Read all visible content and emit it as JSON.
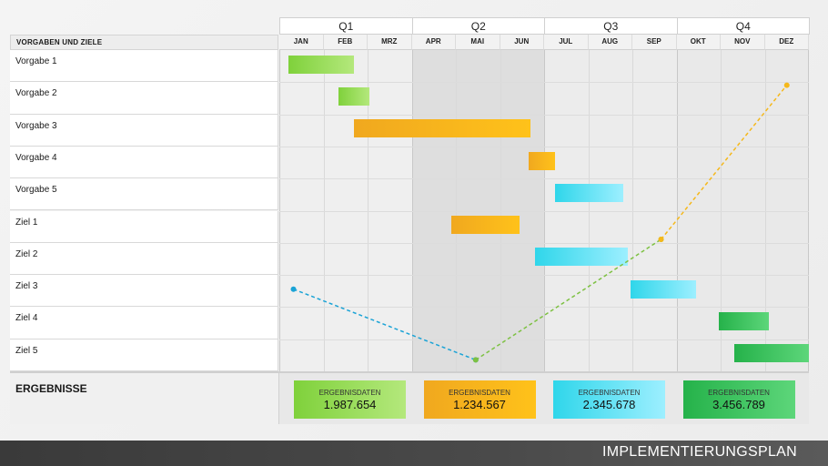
{
  "page_title": "IMPLEMENTIERUNGSPLAN",
  "left_header": "VORGABEN UND ZIELE",
  "results_label": "ERGEBNISSE",
  "colors": {
    "green_light": [
      "#7fd13b",
      "#b4e87c"
    ],
    "orange": [
      "#f0a81f",
      "#ffc21a"
    ],
    "cyan": [
      "#2fd6ea",
      "#9defff"
    ],
    "green_dark": [
      "#25b24a",
      "#5dd67a"
    ],
    "trend_blue": "#1aa3d6",
    "trend_green": "#7dc142",
    "trend_yellow": "#f5b81b"
  },
  "chart_data": {
    "type": "gantt",
    "quarters": [
      "Q1",
      "Q2",
      "Q3",
      "Q4"
    ],
    "months": [
      "JAN",
      "FEB",
      "MRZ",
      "APR",
      "MAI",
      "JUN",
      "JUL",
      "AUG",
      "SEP",
      "OKT",
      "NOV",
      "DEZ"
    ],
    "rows": [
      {
        "label": "Vorgabe 1",
        "start": 0.2,
        "end": 1.7,
        "color": "green_light"
      },
      {
        "label": "Vorgabe 2",
        "start": 1.35,
        "end": 2.05,
        "color": "green_light"
      },
      {
        "label": "Vorgabe 3",
        "start": 1.7,
        "end": 5.7,
        "color": "orange"
      },
      {
        "label": "Vorgabe 4",
        "start": 5.65,
        "end": 6.25,
        "color": "orange"
      },
      {
        "label": "Vorgabe 5",
        "start": 6.25,
        "end": 7.8,
        "color": "cyan"
      },
      {
        "label": "Ziel 1",
        "start": 3.9,
        "end": 5.45,
        "color": "orange"
      },
      {
        "label": "Ziel 2",
        "start": 5.8,
        "end": 7.9,
        "color": "cyan"
      },
      {
        "label": "Ziel 3",
        "start": 7.95,
        "end": 9.45,
        "color": "cyan"
      },
      {
        "label": "Ziel 4",
        "start": 9.95,
        "end": 11.1,
        "color": "green_dark"
      },
      {
        "label": "Ziel 5",
        "start": 10.3,
        "end": 12.6,
        "color": "green_dark"
      }
    ],
    "trend_lines": [
      {
        "color": "trend_blue",
        "points": [
          [
            0.32,
            7.0
          ],
          [
            4.45,
            9.2
          ]
        ]
      },
      {
        "color": "trend_green",
        "points": [
          [
            4.45,
            9.2
          ],
          [
            8.65,
            5.45
          ]
        ]
      },
      {
        "color": "trend_yellow",
        "points": [
          [
            8.65,
            5.45
          ],
          [
            11.5,
            0.65
          ]
        ]
      }
    ],
    "results": [
      {
        "label": "ERGEBNISDATEN",
        "value": "1.987.654",
        "color": "green_light"
      },
      {
        "label": "ERGEBNISDATEN",
        "value": "1.234.567",
        "color": "orange"
      },
      {
        "label": "ERGEBNISDATEN",
        "value": "2.345.678",
        "color": "cyan"
      },
      {
        "label": "ERGEBNISDATEN",
        "value": "3.456.789",
        "color": "green_dark"
      }
    ]
  }
}
